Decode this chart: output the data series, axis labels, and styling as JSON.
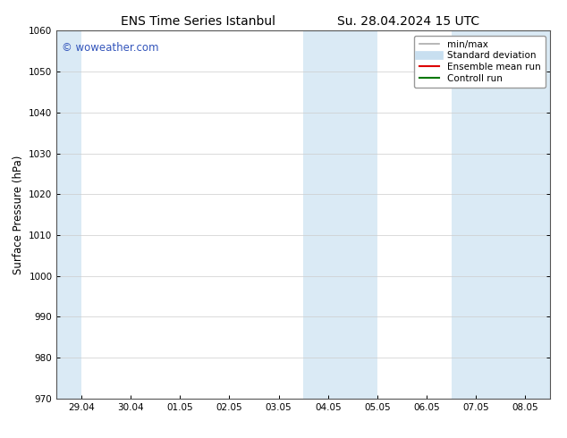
{
  "title_left": "ENS Time Series Istanbul",
  "title_right": "Su. 28.04.2024 15 UTC",
  "ylabel": "Surface Pressure (hPa)",
  "ylim": [
    970,
    1060
  ],
  "yticks": [
    970,
    980,
    990,
    1000,
    1010,
    1020,
    1030,
    1040,
    1050,
    1060
  ],
  "x_labels": [
    "29.04",
    "30.04",
    "01.05",
    "02.05",
    "03.05",
    "04.05",
    "05.05",
    "06.05",
    "07.05",
    "08.05"
  ],
  "x_positions": [
    0,
    1,
    2,
    3,
    4,
    5,
    6,
    7,
    8,
    9
  ],
  "xlim": [
    -0.5,
    9.5
  ],
  "shaded_bands": [
    {
      "x_start": -0.5,
      "x_end": 0.0
    },
    {
      "x_start": 4.5,
      "x_end": 6.0
    },
    {
      "x_start": 7.5,
      "x_end": 9.5
    }
  ],
  "shade_color": "#daeaf5",
  "background_color": "#ffffff",
  "watermark_text": "© woweather.com",
  "watermark_color": "#3355bb",
  "legend_items": [
    {
      "label": "min/max",
      "color": "#aaaaaa",
      "lw": 1.2
    },
    {
      "label": "Standard deviation",
      "color": "#c8dff0",
      "lw": 7
    },
    {
      "label": "Ensemble mean run",
      "color": "#dd0000",
      "lw": 1.5
    },
    {
      "label": "Controll run",
      "color": "#007700",
      "lw": 1.5
    }
  ],
  "font_family": "DejaVu Sans",
  "title_fontsize": 10,
  "tick_fontsize": 7.5,
  "ylabel_fontsize": 8.5,
  "watermark_fontsize": 8.5,
  "legend_fontsize": 7.5
}
